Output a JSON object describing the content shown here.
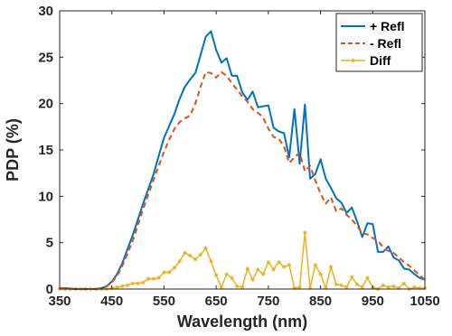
{
  "chart_data": {
    "type": "line",
    "xlabel": "Wavelength (nm)",
    "ylabel": "PDP (%)",
    "xlim": [
      350,
      1050
    ],
    "ylim": [
      0,
      30
    ],
    "xticks": [
      350,
      450,
      550,
      650,
      750,
      850,
      950,
      1050
    ],
    "yticks": [
      0,
      5,
      10,
      15,
      20,
      25,
      30
    ],
    "grid": false,
    "legend_position": "top-right",
    "series": [
      {
        "name": "+ Refl",
        "color": "#0072BD",
        "style": "solid",
        "x": [
          350,
          360,
          370,
          380,
          390,
          400,
          410,
          420,
          430,
          440,
          450,
          460,
          470,
          480,
          490,
          500,
          510,
          520,
          530,
          540,
          550,
          560,
          570,
          580,
          590,
          600,
          610,
          620,
          630,
          640,
          650,
          660,
          670,
          680,
          690,
          700,
          710,
          720,
          730,
          740,
          750,
          760,
          770,
          780,
          790,
          800,
          810,
          820,
          830,
          840,
          850,
          860,
          870,
          880,
          890,
          900,
          910,
          920,
          930,
          940,
          950,
          960,
          970,
          980,
          990,
          1000,
          1010,
          1020,
          1030,
          1040,
          1050
        ],
        "values": [
          0.1,
          0.1,
          0.05,
          0,
          0,
          0,
          0,
          0,
          0.1,
          0.3,
          0.8,
          1.6,
          2.8,
          4.3,
          5.8,
          7.5,
          9.2,
          10.8,
          12.4,
          14.4,
          16.3,
          17.6,
          18.9,
          20.5,
          21.8,
          22.6,
          23.3,
          25.2,
          27.2,
          27.8,
          25.8,
          24.4,
          24.9,
          23.0,
          23.0,
          21.2,
          20.4,
          21.3,
          19.6,
          19.7,
          19.8,
          17.4,
          17.0,
          16.8,
          14.2,
          19.4,
          13.5,
          19.9,
          11.9,
          12.4,
          14.0,
          11.9,
          10.9,
          9.8,
          9.3,
          8.2,
          8.8,
          7.3,
          5.6,
          7.1,
          7.0,
          4.0,
          4.0,
          4.6,
          3.4,
          3.1,
          2.2,
          2.1,
          1.6,
          1.2,
          1.0
        ]
      },
      {
        "name": "- Refl",
        "color": "#D95319",
        "style": "dashed",
        "x": [
          350,
          360,
          370,
          380,
          390,
          400,
          410,
          420,
          430,
          440,
          450,
          460,
          470,
          480,
          490,
          500,
          510,
          520,
          530,
          540,
          550,
          560,
          570,
          580,
          590,
          600,
          610,
          620,
          630,
          640,
          650,
          660,
          670,
          680,
          690,
          700,
          710,
          720,
          730,
          740,
          750,
          760,
          770,
          780,
          790,
          800,
          810,
          820,
          830,
          840,
          850,
          860,
          870,
          880,
          890,
          900,
          910,
          920,
          930,
          940,
          950,
          960,
          970,
          980,
          990,
          1000,
          1010,
          1020,
          1030,
          1040,
          1050
        ],
        "values": [
          0.1,
          0.1,
          0.05,
          0,
          0,
          0,
          0,
          0,
          0.1,
          0.3,
          0.7,
          1.4,
          2.5,
          3.8,
          5.2,
          6.9,
          8.6,
          10.2,
          11.8,
          13.3,
          14.8,
          16.1,
          17.3,
          18.0,
          18.4,
          18.7,
          20.0,
          21.8,
          23.4,
          23.3,
          22.8,
          23.4,
          23.0,
          22.2,
          21.5,
          20.8,
          20.2,
          19.4,
          19.0,
          18.5,
          17.3,
          16.4,
          16.2,
          15.4,
          13.6,
          14.2,
          14.7,
          12.7,
          13.3,
          11.7,
          10.3,
          9.2,
          9.9,
          8.4,
          8.7,
          8.0,
          7.5,
          6.8,
          6.0,
          5.9,
          5.5,
          5.2,
          4.5,
          4.1,
          3.9,
          3.4,
          2.9,
          2.5,
          2.0,
          1.5,
          1.0
        ]
      },
      {
        "name": "Diff",
        "color": "#EDB120",
        "style": "solid-star",
        "x": [
          350,
          360,
          370,
          380,
          390,
          400,
          410,
          420,
          430,
          440,
          450,
          460,
          470,
          480,
          490,
          500,
          510,
          520,
          530,
          540,
          550,
          560,
          570,
          580,
          590,
          600,
          610,
          620,
          630,
          640,
          650,
          660,
          670,
          680,
          690,
          700,
          710,
          720,
          730,
          740,
          750,
          760,
          770,
          780,
          790,
          800,
          810,
          820,
          830,
          840,
          850,
          860,
          870,
          880,
          890,
          900,
          910,
          920,
          930,
          940,
          950,
          960,
          970,
          980,
          990,
          1000,
          1010,
          1020,
          1030,
          1040,
          1050
        ],
        "values": [
          0,
          0,
          0,
          0,
          0,
          0,
          0,
          0,
          0,
          0,
          0.1,
          0.2,
          0.3,
          0.4,
          0.6,
          0.6,
          0.7,
          1.1,
          1.1,
          1.2,
          1.8,
          1.8,
          2.3,
          3.0,
          3.9,
          3.6,
          3.2,
          3.7,
          4.4,
          3.0,
          1.5,
          0.2,
          1.6,
          1.2,
          0.3,
          0.2,
          2.2,
          1.0,
          2.1,
          1.6,
          2.9,
          2.1,
          2.9,
          2.4,
          2.6,
          0.1,
          0.2,
          6.1,
          0.1,
          2.6,
          1.6,
          0.1,
          2.4,
          0.5,
          0.4,
          0.2,
          1.3,
          0.5,
          0.2,
          1.2,
          0.2,
          0,
          0.4,
          0.2,
          0.3,
          0.1,
          0.6,
          0,
          0.2,
          0.1,
          0.1
        ]
      }
    ]
  }
}
